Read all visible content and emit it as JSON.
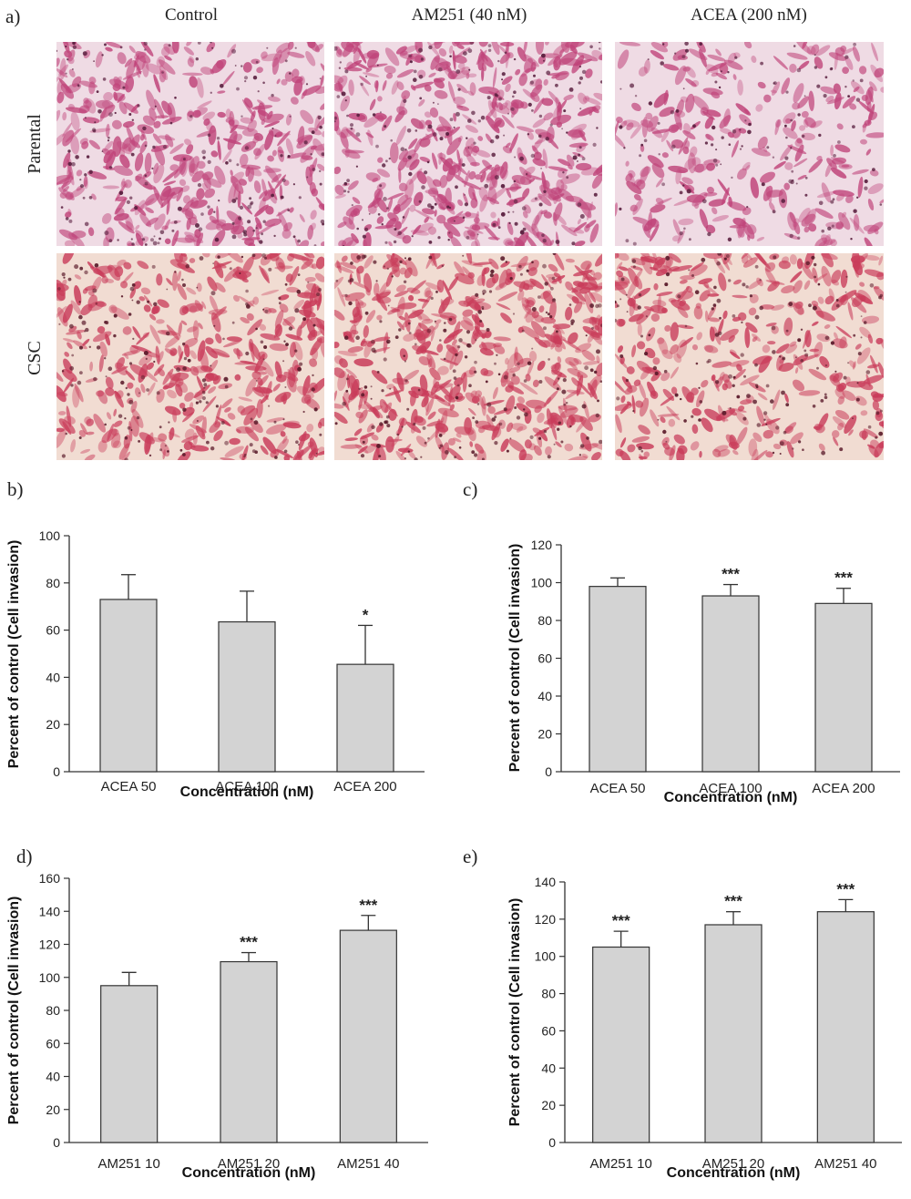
{
  "panel_letters": {
    "a": "a)",
    "b": "b)",
    "c": "c)",
    "d": "d)",
    "e": "e)"
  },
  "micrographs": {
    "columns": [
      "Control",
      "AM251 (40 nM)",
      "ACEA (200 nM)"
    ],
    "rows": [
      "Parental",
      "CSC"
    ],
    "colors": {
      "parental_bg": "#efdbe4",
      "parental_cell": "#c0447a",
      "parental_nucleus": "#5a1f3f",
      "csc_bg": "#f1dcd2",
      "csc_cell": "#c93c5a",
      "csc_nucleus": "#5a1a2a"
    }
  },
  "bar_color": "#d3d3d3",
  "chart_data": [
    {
      "panel": "b",
      "type": "bar",
      "categories": [
        "ACEA 50",
        "ACEA 100",
        "ACEA 200"
      ],
      "values": [
        73,
        63.5,
        45.5
      ],
      "errors": [
        10.5,
        13,
        16.5
      ],
      "significance": [
        "",
        "",
        "*"
      ],
      "xlabel": "Concentration (nM)",
      "ylabel": "Percent of control (Cell invasion)",
      "ylim": [
        0,
        100
      ],
      "yticks": [
        0,
        20,
        40,
        60,
        80,
        100
      ]
    },
    {
      "panel": "c",
      "type": "bar",
      "categories": [
        "ACEA 50",
        "ACEA 100",
        "ACEA 200"
      ],
      "values": [
        98,
        93,
        89
      ],
      "errors": [
        4.5,
        6,
        8
      ],
      "significance": [
        "",
        "***",
        "***"
      ],
      "xlabel": "Concentration (nM)",
      "ylabel": "Percent of control (Cell invasion)",
      "ylim": [
        0,
        120
      ],
      "yticks": [
        0,
        20,
        40,
        60,
        80,
        100,
        120
      ]
    },
    {
      "panel": "d",
      "type": "bar",
      "categories": [
        "AM251 10",
        "AM251 20",
        "AM251 40"
      ],
      "values": [
        95,
        109.5,
        128.5
      ],
      "errors": [
        8,
        5.5,
        9
      ],
      "significance": [
        "",
        "***",
        "***"
      ],
      "xlabel": "Concentration (nM)",
      "ylabel": "Percent of control (Cell invasion)",
      "ylim": [
        0,
        160
      ],
      "yticks": [
        0,
        20,
        40,
        60,
        80,
        100,
        120,
        140,
        160
      ]
    },
    {
      "panel": "e",
      "type": "bar",
      "categories": [
        "AM251 10",
        "AM251 20",
        "AM251 40"
      ],
      "values": [
        105,
        117,
        124
      ],
      "errors": [
        8.5,
        7,
        6.5
      ],
      "significance": [
        "***",
        "***",
        "***"
      ],
      "xlabel": "Concentration (nM)",
      "ylabel": "Percent of control (Cell invasion)",
      "ylim": [
        0,
        140
      ],
      "yticks": [
        0,
        20,
        40,
        60,
        80,
        100,
        120,
        140
      ]
    }
  ]
}
